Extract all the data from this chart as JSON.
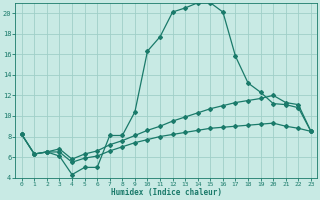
{
  "xlabel": "Humidex (Indice chaleur)",
  "xlim": [
    -0.5,
    23.5
  ],
  "ylim": [
    4,
    21
  ],
  "yticks": [
    4,
    6,
    8,
    10,
    12,
    14,
    16,
    18,
    20
  ],
  "xticks": [
    0,
    1,
    2,
    3,
    4,
    5,
    6,
    7,
    8,
    9,
    10,
    11,
    12,
    13,
    14,
    15,
    16,
    17,
    18,
    19,
    20,
    21,
    22,
    23
  ],
  "bg_color": "#c8eae4",
  "grid_color": "#a0cfc8",
  "line_color": "#1a7a6a",
  "line1_x": [
    0,
    1,
    2,
    3,
    4,
    5,
    6,
    7,
    8,
    9,
    10,
    11,
    12,
    13,
    14,
    15,
    16,
    17,
    18,
    19,
    20,
    21,
    22,
    23
  ],
  "line1_y": [
    8.2,
    6.3,
    6.5,
    6.1,
    4.3,
    5.0,
    5.0,
    8.1,
    8.1,
    10.4,
    16.3,
    17.7,
    20.1,
    20.5,
    21.0,
    21.0,
    20.1,
    15.8,
    13.2,
    12.3,
    11.2,
    11.1,
    10.8,
    8.5
  ],
  "line2_x": [
    0,
    1,
    2,
    3,
    4,
    5,
    6,
    7,
    8,
    9,
    10,
    11,
    12,
    13,
    14,
    15,
    16,
    17,
    18,
    19,
    20,
    21,
    22,
    23
  ],
  "line2_y": [
    8.2,
    6.3,
    6.5,
    6.8,
    5.8,
    6.3,
    6.6,
    7.2,
    7.6,
    8.1,
    8.6,
    9.0,
    9.5,
    9.9,
    10.3,
    10.7,
    11.0,
    11.3,
    11.5,
    11.7,
    12.0,
    11.3,
    11.1,
    8.5
  ],
  "line3_x": [
    0,
    1,
    2,
    3,
    4,
    5,
    6,
    7,
    8,
    9,
    10,
    11,
    12,
    13,
    14,
    15,
    16,
    17,
    18,
    19,
    20,
    21,
    22,
    23
  ],
  "line3_y": [
    8.2,
    6.3,
    6.5,
    6.5,
    5.5,
    5.9,
    6.1,
    6.6,
    7.0,
    7.4,
    7.7,
    8.0,
    8.2,
    8.4,
    8.6,
    8.8,
    8.9,
    9.0,
    9.1,
    9.2,
    9.3,
    9.0,
    8.8,
    8.5
  ],
  "marker": "D",
  "markersize": 2,
  "linewidth": 0.9
}
